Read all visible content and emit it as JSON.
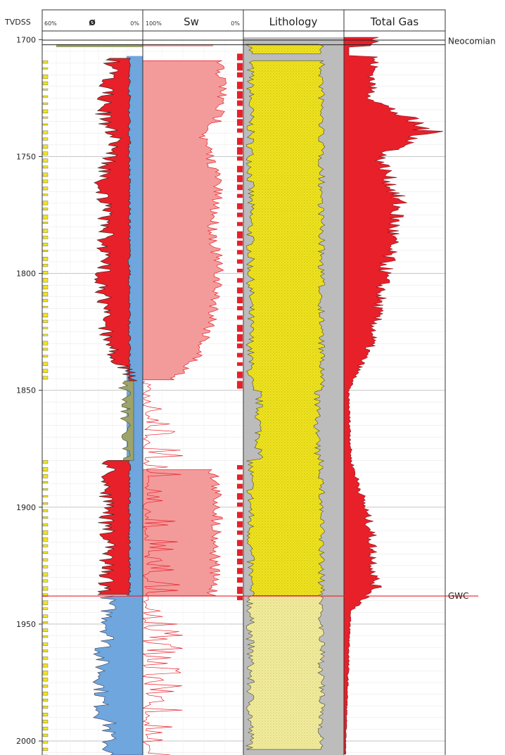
{
  "chart_data": {
    "type": "well-log",
    "depth_label": "TVDSS",
    "depth_range": [
      1699,
      2006
    ],
    "depth_ticks": [
      1700,
      1750,
      1800,
      1850,
      1900,
      1950,
      2000
    ],
    "tracks": [
      {
        "title": "ø",
        "scale_left": "60%",
        "scale_right": "0%"
      },
      {
        "title": "Sw",
        "scale_left": "100%",
        "scale_right": "0%"
      },
      {
        "title": "Lithology",
        "scale_left": "",
        "scale_right": ""
      },
      {
        "title": "Total Gas",
        "scale_left": "",
        "scale_right": ""
      }
    ],
    "markers": [
      {
        "label": "Neocomian",
        "depth": 1701
      },
      {
        "label": "GWC",
        "depth": 1938
      }
    ],
    "series": [
      {
        "track": "porosity",
        "kind": "hydrocarbon porosity fill",
        "depth": [
          1708,
          1720,
          1735,
          1742,
          1760,
          1780,
          1800,
          1820,
          1835,
          1846,
          1880,
          1900,
          1920,
          1937
        ],
        "value_pct": [
          18,
          22,
          24,
          15,
          25,
          22,
          24,
          23,
          18,
          5,
          20,
          22,
          21,
          22
        ]
      },
      {
        "track": "Sw",
        "kind": "water saturation",
        "depth": [
          1709,
          1720,
          1735,
          1742,
          1760,
          1780,
          1800,
          1820,
          1835,
          1846,
          1884,
          1900,
          1920,
          1937
        ],
        "value_pct": [
          25,
          20,
          26,
          40,
          25,
          30,
          25,
          30,
          45,
          70,
          30,
          25,
          28,
          30
        ]
      },
      {
        "track": "Total Gas",
        "kind": "gas reading",
        "depth": [
          1700,
          1725,
          1735,
          1740,
          1750,
          1770,
          1800,
          1830,
          1850,
          1880,
          1895,
          1910,
          1935,
          1945,
          2000
        ],
        "value_rel": [
          0.35,
          0.3,
          0.75,
          0.95,
          0.4,
          0.6,
          0.45,
          0.3,
          0.05,
          0.08,
          0.2,
          0.3,
          0.35,
          0.07,
          0.02
        ]
      }
    ],
    "colors": {
      "hydrocarbon_fill": "#e8202a",
      "water_fill": "#6ea6dd",
      "sw_fill": "#f39b9b",
      "sand": "#f0e41e",
      "sand_water": "#f2ec9c",
      "shale": "#bcbcbc",
      "gas": "#e8202a",
      "marker_line": "#e8202a",
      "curve": "#4b4b2a"
    }
  }
}
